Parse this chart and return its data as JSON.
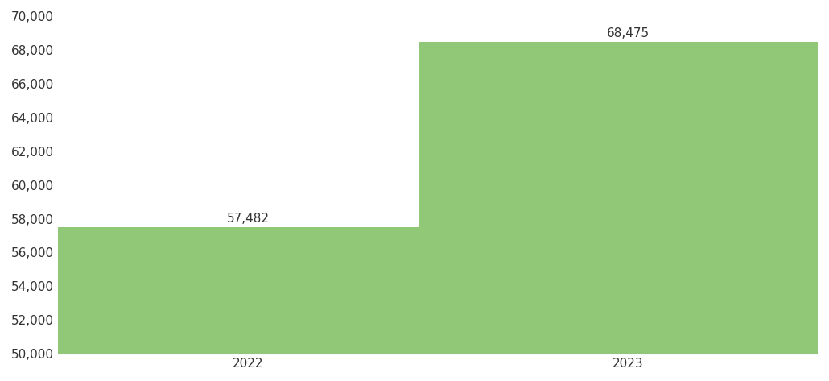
{
  "categories": [
    "2022",
    "2023"
  ],
  "values": [
    57482,
    68475
  ],
  "bar_color": "#90c878",
  "ylim": [
    50000,
    70000
  ],
  "ytick_step": 2000,
  "background_color": "#ffffff",
  "text_color": "#333333",
  "bar_label_fontsize": 11,
  "tick_fontsize": 11,
  "bar_width": 0.55,
  "x_positions": [
    0.25,
    0.75
  ]
}
